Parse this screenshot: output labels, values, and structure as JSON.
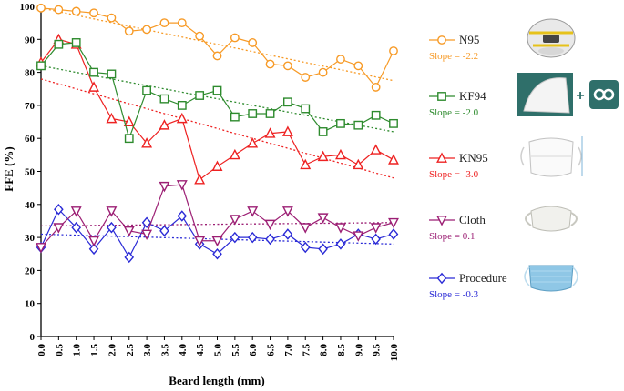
{
  "chart_data": {
    "type": "line",
    "title": "",
    "xlabel": "Beard length (mm)",
    "ylabel": "FFE (%)",
    "xlim": [
      0,
      10
    ],
    "ylim": [
      0,
      100
    ],
    "x_ticks": [
      "0.0",
      "0.5",
      "1.0",
      "1.5",
      "2.0",
      "2.5",
      "3.0",
      "3.5",
      "4.0",
      "4.5",
      "5.0",
      "5.5",
      "6.0",
      "6.5",
      "7.0",
      "7.5",
      "8.0",
      "8.5",
      "9.0",
      "9.5",
      "10.0"
    ],
    "y_ticks": [
      "0",
      "10",
      "20",
      "30",
      "40",
      "50",
      "60",
      "70",
      "80",
      "90",
      "100"
    ],
    "x": [
      0,
      0.5,
      1,
      1.5,
      2,
      2.5,
      3,
      3.5,
      4,
      4.5,
      5,
      5.5,
      6,
      6.5,
      7,
      7.5,
      8,
      8.5,
      9,
      9.5,
      10
    ],
    "series": [
      {
        "name": "N95",
        "slope_label": "Slope = -2.2",
        "color": "#f79a26",
        "marker": "circle",
        "icon": "n95-respirator-icon",
        "values": [
          99.5,
          99,
          98.5,
          98,
          96.5,
          92.5,
          93,
          95,
          95,
          91,
          85,
          90.5,
          89,
          82.5,
          82,
          78.5,
          80,
          84,
          82,
          75.5,
          86.5
        ],
        "trend": [
          99.5,
          77.5
        ]
      },
      {
        "name": "KF94",
        "slope_label": "Slope = -2.0",
        "color": "#2e8b2e",
        "marker": "square",
        "icon": "kf94-mask-icon",
        "values": [
          82,
          88.5,
          89,
          80,
          79.5,
          60,
          74.5,
          72,
          70,
          73,
          74.5,
          66.5,
          67.5,
          67.5,
          71,
          69,
          62,
          64.5,
          64,
          67,
          64.5
        ],
        "trend": [
          82,
          62
        ]
      },
      {
        "name": "KN95",
        "slope_label": "Slope = -3.0",
        "color": "#ee2222",
        "marker": "triangle",
        "icon": "kn95-mask-icon",
        "values": [
          83,
          90,
          88.5,
          75.5,
          66,
          65,
          58.5,
          64,
          66,
          47.5,
          51.5,
          55,
          58.5,
          61.5,
          62,
          52,
          54.5,
          55,
          52,
          56.5,
          53.5
        ],
        "trend": [
          78,
          48
        ]
      },
      {
        "name": "Cloth",
        "slope_label": "Slope = 0.1",
        "color": "#9c1f74",
        "marker": "triangle-down",
        "icon": "cloth-mask-icon",
        "values": [
          27,
          33,
          38,
          29,
          38,
          32,
          31,
          45.5,
          46,
          29,
          29,
          35.5,
          38,
          34,
          38,
          33,
          36,
          33,
          30.5,
          33,
          34.5
        ],
        "trend": [
          33.5,
          34.5
        ]
      },
      {
        "name": "Procedure",
        "slope_label": "Slope = -0.3",
        "color": "#2a2ad6",
        "marker": "diamond",
        "icon": "procedure-mask-icon",
        "values": [
          27,
          38.5,
          33,
          26.5,
          33,
          24,
          34.5,
          32,
          36.5,
          28,
          25,
          30,
          30,
          29.5,
          31,
          27,
          26.5,
          28,
          31,
          29.5,
          31
        ],
        "trend": [
          31,
          28
        ]
      }
    ]
  }
}
